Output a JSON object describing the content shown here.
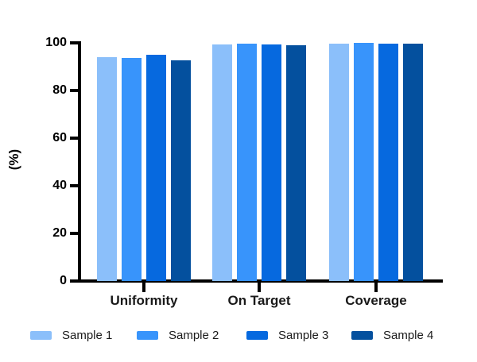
{
  "chart_data": {
    "type": "bar",
    "title": "",
    "ylabel": "(%)",
    "xlabel": "",
    "categories": [
      "Uniformity",
      "On Target",
      "Coverage"
    ],
    "series": [
      {
        "name": "Sample 1",
        "color": "#8BBFFA",
        "values": [
          94.0,
          99.2,
          99.7
        ]
      },
      {
        "name": "Sample 2",
        "color": "#3894FB",
        "values": [
          93.5,
          99.5,
          99.9
        ]
      },
      {
        "name": "Sample 3",
        "color": "#0669DF",
        "values": [
          95.0,
          99.2,
          99.7
        ]
      },
      {
        "name": "Sample 4",
        "color": "#04509E",
        "values": [
          92.8,
          99.0,
          99.5
        ]
      }
    ],
    "ylim": [
      0,
      100
    ],
    "yticks": [
      0,
      20,
      40,
      60,
      80,
      100
    ],
    "grid": false,
    "legend_position": "bottom",
    "axis_color": "#000000"
  }
}
